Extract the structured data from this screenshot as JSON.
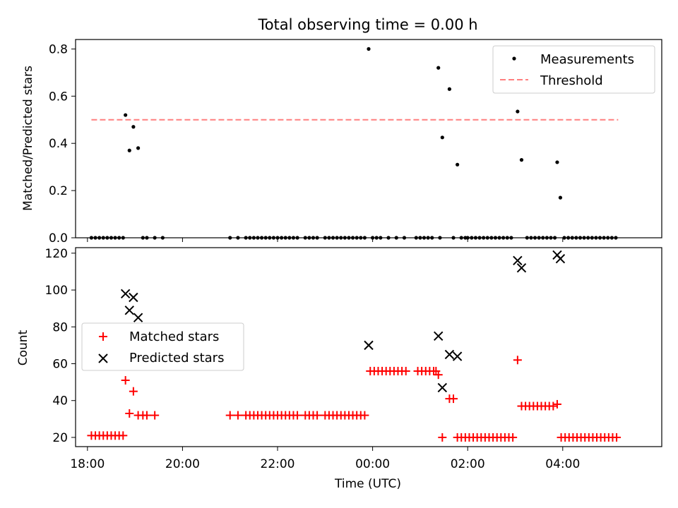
{
  "chart_data": [
    {
      "type": "scatter",
      "title": "Total observing time = 0.00 h",
      "ylabel": "Matched/Predicted stars",
      "xlabel": "",
      "ylim": [
        0,
        0.84
      ],
      "yticks": [
        "0.0",
        "0.2",
        "0.4",
        "0.6",
        "0.8"
      ],
      "ytick_values": [
        0,
        0.2,
        0.4,
        0.6,
        0.8
      ],
      "legend": {
        "position": "top-right",
        "entries": [
          "Measurements",
          "Threshold"
        ]
      },
      "threshold": {
        "name": "Threshold",
        "y": 0.5,
        "x_range": [
          "18:05",
          "05:10"
        ],
        "color": "#ff7f7f"
      },
      "series": [
        {
          "name": "Measurements",
          "color": "#000000",
          "points": [
            [
              "18:05",
              0
            ],
            [
              "18:10",
              0
            ],
            [
              "18:15",
              0
            ],
            [
              "18:20",
              0
            ],
            [
              "18:25",
              0
            ],
            [
              "18:30",
              0
            ],
            [
              "18:35",
              0
            ],
            [
              "18:40",
              0
            ],
            [
              "18:45",
              0
            ],
            [
              "18:48",
              0.52
            ],
            [
              "18:53",
              0.37
            ],
            [
              "18:58",
              0.47
            ],
            [
              "19:04",
              0.38
            ],
            [
              "19:10",
              0
            ],
            [
              "19:15",
              0
            ],
            [
              "19:25",
              0
            ],
            [
              "19:35",
              0
            ],
            [
              "21:00",
              0
            ],
            [
              "21:10",
              0
            ],
            [
              "21:20",
              0
            ],
            [
              "21:25",
              0
            ],
            [
              "21:30",
              0
            ],
            [
              "21:35",
              0
            ],
            [
              "21:40",
              0
            ],
            [
              "21:45",
              0
            ],
            [
              "21:50",
              0
            ],
            [
              "21:55",
              0
            ],
            [
              "22:00",
              0
            ],
            [
              "22:05",
              0
            ],
            [
              "22:10",
              0
            ],
            [
              "22:15",
              0
            ],
            [
              "22:20",
              0
            ],
            [
              "22:25",
              0
            ],
            [
              "22:35",
              0
            ],
            [
              "22:40",
              0
            ],
            [
              "22:45",
              0
            ],
            [
              "22:50",
              0
            ],
            [
              "23:00",
              0
            ],
            [
              "23:05",
              0
            ],
            [
              "23:10",
              0
            ],
            [
              "23:15",
              0
            ],
            [
              "23:20",
              0
            ],
            [
              "23:25",
              0
            ],
            [
              "23:30",
              0
            ],
            [
              "23:35",
              0
            ],
            [
              "23:40",
              0
            ],
            [
              "23:45",
              0
            ],
            [
              "23:50",
              0
            ],
            [
              "23:55",
              0.8
            ],
            [
              "00:00",
              0
            ],
            [
              "00:05",
              0
            ],
            [
              "00:10",
              0
            ],
            [
              "00:20",
              0
            ],
            [
              "00:30",
              0
            ],
            [
              "00:40",
              0
            ],
            [
              "00:55",
              0
            ],
            [
              "01:00",
              0
            ],
            [
              "01:05",
              0
            ],
            [
              "01:10",
              0
            ],
            [
              "01:15",
              0
            ],
            [
              "01:23",
              0.72
            ],
            [
              "01:25",
              0
            ],
            [
              "01:28",
              0.425
            ],
            [
              "01:37",
              0.63
            ],
            [
              "01:42",
              0
            ],
            [
              "01:47",
              0.31
            ],
            [
              "01:52",
              0
            ],
            [
              "01:57",
              0
            ],
            [
              "02:00",
              0
            ],
            [
              "02:05",
              0
            ],
            [
              "02:10",
              0
            ],
            [
              "02:15",
              0
            ],
            [
              "02:20",
              0
            ],
            [
              "02:25",
              0
            ],
            [
              "02:30",
              0
            ],
            [
              "02:35",
              0
            ],
            [
              "02:40",
              0
            ],
            [
              "02:45",
              0
            ],
            [
              "02:50",
              0
            ],
            [
              "02:55",
              0
            ],
            [
              "03:03",
              0.535
            ],
            [
              "03:08",
              0.33
            ],
            [
              "03:15",
              0
            ],
            [
              "03:20",
              0
            ],
            [
              "03:25",
              0
            ],
            [
              "03:30",
              0
            ],
            [
              "03:35",
              0
            ],
            [
              "03:40",
              0
            ],
            [
              "03:45",
              0
            ],
            [
              "03:50",
              0
            ],
            [
              "03:53",
              0.32
            ],
            [
              "03:57",
              0.17
            ],
            [
              "04:02",
              0
            ],
            [
              "04:07",
              0
            ],
            [
              "04:12",
              0
            ],
            [
              "04:17",
              0
            ],
            [
              "04:22",
              0
            ],
            [
              "04:27",
              0
            ],
            [
              "04:32",
              0
            ],
            [
              "04:37",
              0
            ],
            [
              "04:42",
              0
            ],
            [
              "04:47",
              0
            ],
            [
              "04:52",
              0
            ],
            [
              "04:57",
              0
            ],
            [
              "05:02",
              0
            ],
            [
              "05:07",
              0
            ]
          ]
        }
      ]
    },
    {
      "type": "scatter",
      "title": "",
      "ylabel": "Count",
      "xlabel": "Time (UTC)",
      "ylim": [
        15,
        123
      ],
      "yticks": [
        "20",
        "40",
        "60",
        "80",
        "100",
        "120"
      ],
      "ytick_values": [
        20,
        40,
        60,
        80,
        100,
        120
      ],
      "xlim": [
        "17:45",
        "06:05"
      ],
      "xticks": [
        "18:00",
        "20:00",
        "22:00",
        "00:00",
        "02:00",
        "04:00"
      ],
      "legend": {
        "position": "center-left",
        "entries": [
          "Matched stars",
          "Predicted stars"
        ]
      },
      "series": [
        {
          "name": "Matched stars",
          "color": "#ff0000",
          "marker": "+",
          "points": [
            [
              "18:05",
              21
            ],
            [
              "18:10",
              21
            ],
            [
              "18:15",
              21
            ],
            [
              "18:20",
              21
            ],
            [
              "18:25",
              21
            ],
            [
              "18:30",
              21
            ],
            [
              "18:35",
              21
            ],
            [
              "18:40",
              21
            ],
            [
              "18:45",
              21
            ],
            [
              "18:48",
              51
            ],
            [
              "18:53",
              33
            ],
            [
              "18:58",
              45
            ],
            [
              "19:04",
              32
            ],
            [
              "19:10",
              32
            ],
            [
              "19:15",
              32
            ],
            [
              "19:25",
              32
            ],
            [
              "21:00",
              32
            ],
            [
              "21:10",
              32
            ],
            [
              "21:20",
              32
            ],
            [
              "21:25",
              32
            ],
            [
              "21:30",
              32
            ],
            [
              "21:35",
              32
            ],
            [
              "21:40",
              32
            ],
            [
              "21:45",
              32
            ],
            [
              "21:50",
              32
            ],
            [
              "21:55",
              32
            ],
            [
              "22:00",
              32
            ],
            [
              "22:05",
              32
            ],
            [
              "22:10",
              32
            ],
            [
              "22:15",
              32
            ],
            [
              "22:20",
              32
            ],
            [
              "22:25",
              32
            ],
            [
              "22:35",
              32
            ],
            [
              "22:40",
              32
            ],
            [
              "22:45",
              32
            ],
            [
              "22:50",
              32
            ],
            [
              "23:00",
              32
            ],
            [
              "23:05",
              32
            ],
            [
              "23:10",
              32
            ],
            [
              "23:15",
              32
            ],
            [
              "23:20",
              32
            ],
            [
              "23:25",
              32
            ],
            [
              "23:30",
              32
            ],
            [
              "23:35",
              32
            ],
            [
              "23:40",
              32
            ],
            [
              "23:45",
              32
            ],
            [
              "23:50",
              32
            ],
            [
              "23:57",
              56
            ],
            [
              "00:02",
              56
            ],
            [
              "00:07",
              56
            ],
            [
              "00:12",
              56
            ],
            [
              "00:17",
              56
            ],
            [
              "00:22",
              56
            ],
            [
              "00:27",
              56
            ],
            [
              "00:32",
              56
            ],
            [
              "00:37",
              56
            ],
            [
              "00:42",
              56
            ],
            [
              "00:57",
              56
            ],
            [
              "01:02",
              56
            ],
            [
              "01:07",
              56
            ],
            [
              "01:12",
              56
            ],
            [
              "01:17",
              56
            ],
            [
              "01:20",
              56
            ],
            [
              "01:23",
              54
            ],
            [
              "01:28",
              20
            ],
            [
              "01:37",
              41
            ],
            [
              "01:42",
              41
            ],
            [
              "01:47",
              20
            ],
            [
              "01:52",
              20
            ],
            [
              "01:57",
              20
            ],
            [
              "02:02",
              20
            ],
            [
              "02:07",
              20
            ],
            [
              "02:12",
              20
            ],
            [
              "02:17",
              20
            ],
            [
              "02:22",
              20
            ],
            [
              "02:27",
              20
            ],
            [
              "02:32",
              20
            ],
            [
              "02:37",
              20
            ],
            [
              "02:42",
              20
            ],
            [
              "02:47",
              20
            ],
            [
              "02:52",
              20
            ],
            [
              "02:57",
              20
            ],
            [
              "03:03",
              62
            ],
            [
              "03:08",
              37
            ],
            [
              "03:13",
              37
            ],
            [
              "03:18",
              37
            ],
            [
              "03:23",
              37
            ],
            [
              "03:28",
              37
            ],
            [
              "03:33",
              37
            ],
            [
              "03:38",
              37
            ],
            [
              "03:43",
              37
            ],
            [
              "03:48",
              37
            ],
            [
              "03:53",
              38
            ],
            [
              "03:58",
              20
            ],
            [
              "04:03",
              20
            ],
            [
              "04:08",
              20
            ],
            [
              "04:13",
              20
            ],
            [
              "04:18",
              20
            ],
            [
              "04:23",
              20
            ],
            [
              "04:28",
              20
            ],
            [
              "04:33",
              20
            ],
            [
              "04:38",
              20
            ],
            [
              "04:43",
              20
            ],
            [
              "04:48",
              20
            ],
            [
              "04:53",
              20
            ],
            [
              "04:58",
              20
            ],
            [
              "05:03",
              20
            ],
            [
              "05:08",
              20
            ]
          ]
        },
        {
          "name": "Predicted stars",
          "color": "#000000",
          "marker": "x",
          "points": [
            [
              "18:48",
              98
            ],
            [
              "18:53",
              89
            ],
            [
              "18:58",
              96
            ],
            [
              "19:04",
              85
            ],
            [
              "23:55",
              70
            ],
            [
              "01:23",
              75
            ],
            [
              "01:28",
              47
            ],
            [
              "01:37",
              65
            ],
            [
              "01:47",
              64
            ],
            [
              "03:03",
              116
            ],
            [
              "03:08",
              112
            ],
            [
              "03:53",
              119
            ],
            [
              "03:57",
              117
            ]
          ]
        }
      ]
    }
  ]
}
